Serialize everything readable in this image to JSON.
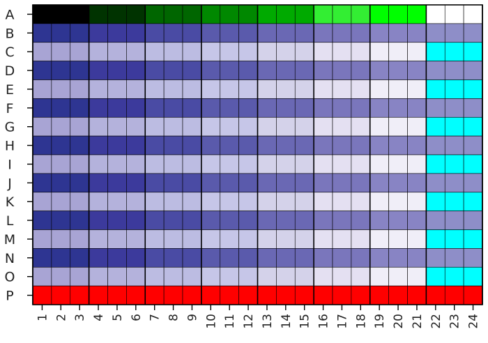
{
  "chart_data": {
    "type": "heatmap",
    "title": "",
    "xlabel": "",
    "ylabel": "",
    "rows": [
      "A",
      "B",
      "C",
      "D",
      "E",
      "F",
      "G",
      "H",
      "I",
      "J",
      "K",
      "L",
      "M",
      "N",
      "O",
      "P"
    ],
    "columns": [
      "1",
      "2",
      "3",
      "4",
      "5",
      "6",
      "7",
      "8",
      "9",
      "10",
      "11",
      "12",
      "13",
      "14",
      "15",
      "16",
      "17",
      "18",
      "19",
      "20",
      "21",
      "22",
      "23",
      "24"
    ],
    "column_groups": [
      3,
      3,
      3,
      3,
      3,
      3,
      3,
      3
    ],
    "row_a_group_colors": [
      "#000000",
      "#003300",
      "#006600",
      "#008800",
      "#00aa00",
      "#33ee33",
      "#00ff00",
      "#ffffff"
    ],
    "dark_row_colors": [
      "#2e3592",
      "#3c3a9c",
      "#4a4ba4",
      "#5a5aac",
      "#6a68b4",
      "#7a76bc",
      "#8884c4",
      "#8e8ec8"
    ],
    "light_row_colors": [
      "#a8a4d4",
      "#b4b2dc",
      "#bcbce2",
      "#c6c6e8",
      "#d4d2ea",
      "#e4e0f2",
      "#f0eef8",
      "#00ffff"
    ],
    "row_p_color": "#ff0000",
    "grid_color": "#000000"
  }
}
